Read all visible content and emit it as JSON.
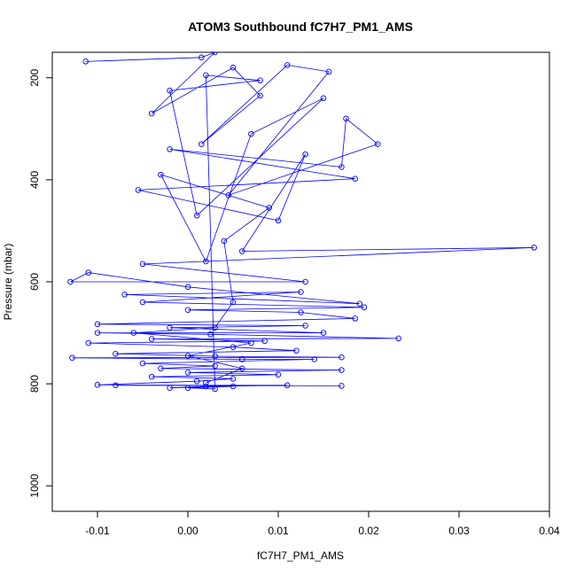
{
  "chart_data": {
    "type": "line",
    "title": "ATOM3 Southbound fC7H7_PM1_AMS",
    "xlabel": "fC7H7_PM1_AMS",
    "ylabel": "Pressure (mbar)",
    "xlim": [
      -0.015,
      0.04
    ],
    "ylim": [
      1050,
      150
    ],
    "y_reversed": true,
    "x_ticks": [
      -0.01,
      0.0,
      0.01,
      0.02,
      0.03,
      0.04
    ],
    "x_tick_labels": [
      "-0.01",
      "0.00",
      "0.01",
      "0.02",
      "0.03",
      "0.04"
    ],
    "y_ticks": [
      200,
      400,
      600,
      800,
      1000
    ],
    "y_tick_labels": [
      "200",
      "400",
      "600",
      "800",
      "1000"
    ],
    "series_color": "#0000ff",
    "marker": "open-circle",
    "series": [
      {
        "points": [
          [
            -0.0113,
            168
          ],
          [
            0.0015,
            160
          ],
          [
            0.003,
            150
          ],
          [
            -0.004,
            270
          ],
          [
            0.005,
            180
          ],
          [
            0.008,
            235
          ],
          [
            0.0015,
            330
          ],
          [
            0.011,
            175
          ],
          [
            0.0156,
            188
          ],
          [
            0.0045,
            430
          ],
          [
            0.021,
            330
          ],
          [
            0.0175,
            280
          ],
          [
            0.017,
            375
          ],
          [
            -0.002,
            340
          ],
          [
            0.0185,
            398
          ],
          [
            -0.0055,
            420
          ],
          [
            0.01,
            480
          ],
          [
            0.013,
            350
          ],
          [
            0.006,
            540
          ],
          [
            0.0383,
            533
          ],
          [
            -0.005,
            565
          ],
          [
            0.013,
            600
          ],
          [
            -0.013,
            600
          ],
          [
            -0.011,
            582
          ],
          [
            0.0,
            610
          ],
          [
            0.019,
            643
          ],
          [
            -0.007,
            625
          ],
          [
            0.0125,
            620
          ],
          [
            -0.005,
            640
          ],
          [
            0.0195,
            650
          ],
          [
            0.0,
            655
          ],
          [
            0.0125,
            660
          ],
          [
            0.0185,
            672
          ],
          [
            -0.01,
            683
          ],
          [
            0.013,
            686
          ],
          [
            -0.002,
            690
          ],
          [
            0.015,
            700
          ],
          [
            -0.01,
            700
          ],
          [
            0.0025,
            703
          ],
          [
            0.0233,
            711
          ],
          [
            -0.004,
            712
          ],
          [
            0.0085,
            716
          ],
          [
            -0.011,
            720
          ],
          [
            0.005,
            728
          ],
          [
            0.012,
            735
          ],
          [
            -0.008,
            741
          ],
          [
            0.003,
            746
          ],
          [
            0.017,
            748
          ],
          [
            -0.0128,
            749
          ],
          [
            0.006,
            752
          ],
          [
            0.014,
            752
          ],
          [
            -0.005,
            760
          ],
          [
            0.003,
            765
          ],
          [
            -0.003,
            770
          ],
          [
            0.017,
            773
          ],
          [
            0.0,
            778
          ],
          [
            0.01,
            782
          ],
          [
            -0.004,
            786
          ],
          [
            0.005,
            790
          ],
          [
            0.001,
            795
          ],
          [
            -0.01,
            802
          ],
          [
            0.017,
            804
          ],
          [
            -0.008,
            803
          ],
          [
            0.011,
            803
          ],
          [
            0.002,
            805
          ],
          [
            -0.002,
            808
          ],
          [
            0.005,
            805
          ],
          [
            0.0,
            808
          ],
          [
            0.003,
            810
          ],
          [
            0.002,
            195
          ],
          [
            0.008,
            205
          ],
          [
            -0.002,
            225
          ],
          [
            0.001,
            470
          ],
          [
            0.015,
            240
          ],
          [
            0.007,
            310
          ],
          [
            0.002,
            560
          ],
          [
            -0.003,
            390
          ],
          [
            0.009,
            455
          ],
          [
            0.004,
            520
          ],
          [
            0.005,
            640
          ],
          [
            0.003,
            690
          ],
          [
            -0.006,
            700
          ],
          [
            0.007,
            720
          ],
          [
            0.0,
            745
          ],
          [
            0.006,
            770
          ],
          [
            0.002,
            798
          ]
        ]
      }
    ]
  }
}
